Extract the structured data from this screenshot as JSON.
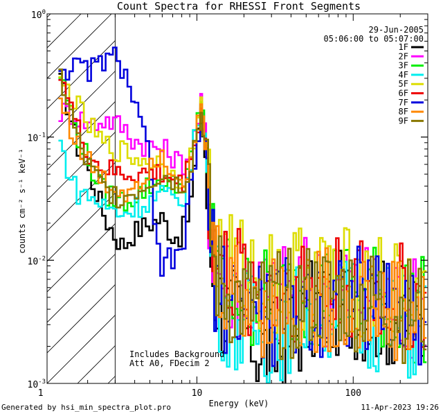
{
  "chart_data": {
    "type": "line",
    "title": "Count Spectra for RHESSI Front Segments",
    "xlabel": "Energy (keV)",
    "ylabel": "counts cm⁻² s⁻¹ keV⁻¹",
    "xscale": "log",
    "yscale": "log",
    "xlim": [
      1.1,
      300
    ],
    "ylim": [
      0.001,
      1.0
    ],
    "x_ticks": [
      {
        "value": 1,
        "label": "1"
      },
      {
        "value": 10,
        "label": "10"
      },
      {
        "value": 100,
        "label": "100"
      }
    ],
    "y_ticks": [
      {
        "value": 1,
        "base": "10",
        "exp": "0"
      },
      {
        "value": 0.1,
        "base": "10",
        "exp": "-1"
      },
      {
        "value": 0.01,
        "base": "10",
        "exp": "-2"
      },
      {
        "value": 0.001,
        "base": "10",
        "exp": "-3"
      }
    ],
    "date": "29-Jun-2005",
    "time_range": "05:06:00 to 05:07:00",
    "hatched_region_xmax": 3.0,
    "annotations": [
      "Includes Background",
      "Att A0, FDecim 2"
    ],
    "series": [
      {
        "name": "1F",
        "color": "#000000",
        "x": [
          1.3,
          1.5,
          1.7,
          2.0,
          2.3,
          2.6,
          3.0,
          3.4,
          3.8,
          4.3,
          5,
          6,
          7,
          8,
          9,
          10,
          10.7,
          11.3,
          12,
          13,
          15,
          17,
          20,
          25,
          30,
          40,
          50,
          60,
          80,
          100,
          130,
          160,
          200,
          250,
          300
        ],
        "y": [
          0.3,
          0.18,
          0.09,
          0.055,
          0.035,
          0.022,
          0.016,
          0.013,
          0.016,
          0.018,
          0.02,
          0.022,
          0.016,
          0.016,
          0.025,
          0.08,
          0.15,
          0.07,
          0.015,
          0.006,
          0.004,
          0.0035,
          0.003,
          0.002,
          0.0017,
          0.0025,
          0.0035,
          0.004,
          0.0045,
          0.0045,
          0.004,
          0.0038,
          0.0035,
          0.003,
          0.003
        ]
      },
      {
        "name": "2F",
        "color": "#ff00ff",
        "x": [
          1.3,
          1.5,
          1.7,
          2.0,
          2.3,
          2.6,
          3.0,
          3.4,
          3.8,
          4.3,
          5,
          6,
          7,
          8,
          9,
          10,
          10.7,
          11.3,
          12,
          13,
          15,
          17,
          20,
          25,
          30,
          40,
          50,
          60,
          80,
          100,
          130,
          160,
          200,
          250,
          300
        ],
        "y": [
          0.16,
          0.16,
          0.15,
          0.13,
          0.13,
          0.14,
          0.13,
          0.12,
          0.1,
          0.09,
          0.085,
          0.08,
          0.07,
          0.06,
          0.07,
          0.12,
          0.19,
          0.11,
          0.03,
          0.01,
          0.007,
          0.0065,
          0.006,
          0.0055,
          0.005,
          0.0055,
          0.006,
          0.0055,
          0.0055,
          0.0055,
          0.005,
          0.005,
          0.0045,
          0.004,
          0.004
        ]
      },
      {
        "name": "3F",
        "color": "#00ee00",
        "x": [
          1.3,
          1.5,
          1.7,
          2.0,
          2.3,
          2.6,
          3.0,
          3.4,
          3.8,
          4.3,
          5,
          6,
          7,
          8,
          9,
          10,
          10.7,
          11.3,
          12,
          13,
          15,
          17,
          20,
          25,
          30,
          40,
          50,
          60,
          80,
          100,
          130,
          160,
          200,
          250,
          300
        ],
        "y": [
          0.36,
          0.2,
          0.11,
          0.065,
          0.045,
          0.035,
          0.032,
          0.03,
          0.032,
          0.035,
          0.04,
          0.045,
          0.04,
          0.04,
          0.06,
          0.12,
          0.19,
          0.1,
          0.025,
          0.009,
          0.0065,
          0.006,
          0.0055,
          0.005,
          0.0045,
          0.005,
          0.006,
          0.0055,
          0.0055,
          0.0055,
          0.005,
          0.005,
          0.0045,
          0.004,
          0.004
        ]
      },
      {
        "name": "4F",
        "color": "#00eeee",
        "x": [
          1.3,
          1.5,
          1.7,
          2.0,
          2.3,
          2.6,
          3.0,
          3.4,
          3.8,
          4.3,
          5,
          6,
          7,
          8,
          9,
          10,
          10.7,
          11.3,
          12,
          13,
          15,
          17,
          20,
          25,
          30,
          40,
          50,
          60,
          80,
          100,
          130,
          160,
          200,
          250,
          300
        ],
        "y": [
          0.1,
          0.055,
          0.036,
          0.034,
          0.03,
          0.027,
          0.025,
          0.024,
          0.026,
          0.028,
          0.03,
          0.035,
          0.03,
          0.03,
          0.05,
          0.12,
          0.21,
          0.1,
          0.02,
          0.006,
          0.004,
          0.0035,
          0.003,
          0.003,
          0.0025,
          0.0035,
          0.004,
          0.0045,
          0.004,
          0.004,
          0.0035,
          0.0035,
          0.003,
          0.0028,
          0.0028
        ]
      },
      {
        "name": "5F",
        "color": "#dddd00",
        "x": [
          1.3,
          1.5,
          1.7,
          2.0,
          2.3,
          2.6,
          3.0,
          3.4,
          3.8,
          4.3,
          5,
          6,
          7,
          8,
          9,
          10,
          10.7,
          11.3,
          12,
          13,
          15,
          17,
          20,
          25,
          30,
          40,
          50,
          60,
          80,
          100,
          130,
          160,
          200,
          250,
          300
        ],
        "y": [
          0.27,
          0.24,
          0.18,
          0.13,
          0.1,
          0.085,
          0.08,
          0.075,
          0.07,
          0.065,
          0.065,
          0.06,
          0.05,
          0.045,
          0.06,
          0.12,
          0.18,
          0.12,
          0.035,
          0.013,
          0.01,
          0.009,
          0.008,
          0.007,
          0.007,
          0.007,
          0.0075,
          0.007,
          0.007,
          0.0065,
          0.006,
          0.006,
          0.0055,
          0.005,
          0.005
        ]
      },
      {
        "name": "6F",
        "color": "#ee0000",
        "x": [
          1.3,
          1.5,
          1.7,
          2.0,
          2.3,
          2.6,
          3.0,
          3.4,
          3.8,
          4.3,
          5,
          6,
          7,
          8,
          9,
          10,
          10.7,
          11.3,
          12,
          13,
          15,
          17,
          20,
          25,
          30,
          40,
          50,
          60,
          80,
          100,
          130,
          160,
          200,
          250,
          300
        ],
        "y": [
          0.4,
          0.21,
          0.12,
          0.075,
          0.06,
          0.055,
          0.05,
          0.05,
          0.05,
          0.05,
          0.05,
          0.05,
          0.045,
          0.04,
          0.06,
          0.12,
          0.17,
          0.1,
          0.03,
          0.011,
          0.008,
          0.007,
          0.0065,
          0.006,
          0.0055,
          0.006,
          0.0065,
          0.006,
          0.006,
          0.006,
          0.0055,
          0.005,
          0.005,
          0.0045,
          0.0045
        ]
      },
      {
        "name": "7F",
        "color": "#0000dd",
        "x": [
          1.3,
          1.5,
          1.7,
          2.0,
          2.3,
          2.6,
          3.0,
          3.4,
          3.8,
          4.3,
          5,
          5.5,
          6,
          6.5,
          7,
          8,
          9,
          10,
          10.7,
          11.3,
          12,
          13,
          15,
          17,
          20,
          25,
          30,
          40,
          50,
          60,
          80,
          100,
          130,
          160,
          200,
          250,
          300
        ],
        "y": [
          0.38,
          0.36,
          0.36,
          0.35,
          0.38,
          0.42,
          0.44,
          0.36,
          0.24,
          0.13,
          0.07,
          0.015,
          0.006,
          0.012,
          0.009,
          0.012,
          0.03,
          0.08,
          0.13,
          0.08,
          0.02,
          0.007,
          0.005,
          0.0045,
          0.004,
          0.0038,
          0.0035,
          0.004,
          0.0045,
          0.0045,
          0.005,
          0.005,
          0.0045,
          0.0045,
          0.004,
          0.0035,
          0.0035
        ]
      },
      {
        "name": "8F",
        "color": "#ff8800",
        "x": [
          1.3,
          1.5,
          1.7,
          2.0,
          2.3,
          2.6,
          3.0,
          3.4,
          3.8,
          4.3,
          5,
          6,
          7,
          8,
          9,
          10,
          10.7,
          11.3,
          12,
          13,
          15,
          17,
          20,
          25,
          30,
          40,
          50,
          60,
          80,
          100,
          130,
          160,
          200,
          250,
          300
        ],
        "y": [
          0.22,
          0.14,
          0.09,
          0.065,
          0.05,
          0.042,
          0.038,
          0.035,
          0.04,
          0.045,
          0.06,
          0.075,
          0.055,
          0.045,
          0.06,
          0.11,
          0.16,
          0.09,
          0.025,
          0.009,
          0.006,
          0.0055,
          0.005,
          0.0045,
          0.0045,
          0.0045,
          0.005,
          0.0045,
          0.0045,
          0.0045,
          0.0045,
          0.004,
          0.004,
          0.0035,
          0.0035
        ]
      },
      {
        "name": "9F",
        "color": "#887700",
        "x": [
          1.3,
          1.5,
          1.7,
          2.0,
          2.3,
          2.6,
          3.0,
          3.4,
          3.8,
          4.3,
          5,
          6,
          7,
          8,
          9,
          10,
          10.7,
          11.3,
          12,
          13,
          15,
          17,
          20,
          25,
          30,
          40,
          50,
          60,
          80,
          100,
          130,
          160,
          200,
          250,
          300
        ],
        "y": [
          0.35,
          0.19,
          0.1,
          0.06,
          0.045,
          0.038,
          0.034,
          0.033,
          0.035,
          0.038,
          0.045,
          0.05,
          0.045,
          0.04,
          0.055,
          0.11,
          0.16,
          0.09,
          0.022,
          0.008,
          0.0055,
          0.005,
          0.0045,
          0.004,
          0.004,
          0.0045,
          0.005,
          0.005,
          0.005,
          0.005,
          0.0045,
          0.0045,
          0.004,
          0.0038,
          0.0038
        ]
      }
    ]
  },
  "footer": {
    "left": "Generated by hsi_min_spectra_plot.pro",
    "right": "11-Apr-2023 19:26"
  }
}
